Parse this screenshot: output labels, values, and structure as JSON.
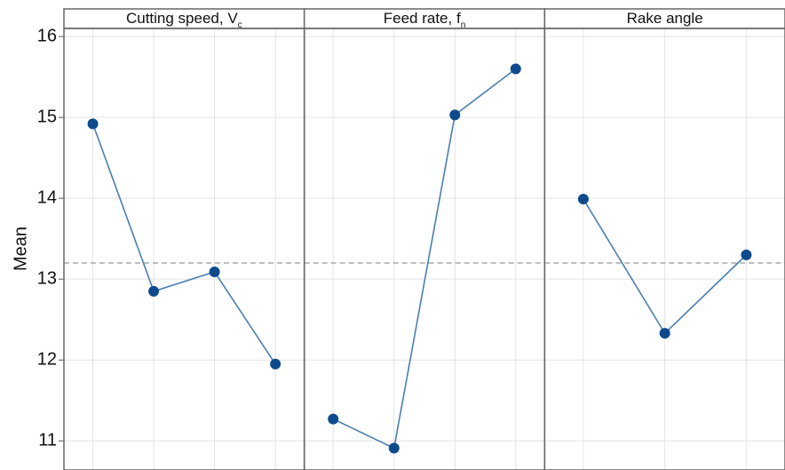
{
  "chart_data": {
    "type": "line",
    "ylabel": "Mean",
    "ylim": [
      10.64,
      16.1
    ],
    "yticks": [
      11,
      12,
      13,
      14,
      15,
      16
    ],
    "reference_line": 13.2,
    "grid": true,
    "line_color": "#4a7fb0",
    "point_color": "#0d4a8c",
    "panels": [
      {
        "title": "Cutting speed, V",
        "subscript": "c",
        "values": [
          14.92,
          12.85,
          13.09,
          11.95
        ]
      },
      {
        "title": "Feed rate, f",
        "subscript": "n",
        "values": [
          11.27,
          10.91,
          15.03,
          15.6
        ]
      },
      {
        "title": "Rake angle",
        "values": [
          13.99,
          12.33,
          13.3
        ]
      }
    ]
  }
}
